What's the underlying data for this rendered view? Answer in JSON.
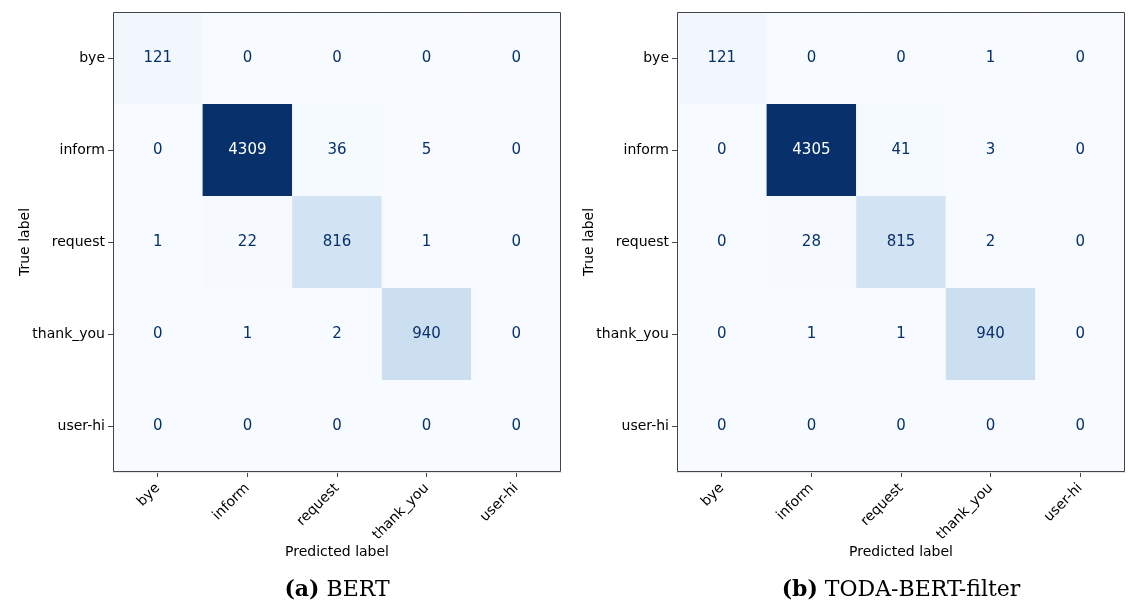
{
  "chart_data": [
    {
      "type": "heatmap",
      "title": "(a) BERT",
      "xlabel": "Predicted label",
      "ylabel": "True label",
      "categories": [
        "bye",
        "inform",
        "request",
        "thank_you",
        "user-hi"
      ],
      "y_categories": [
        "bye",
        "inform",
        "request",
        "thank_you",
        "user-hi"
      ],
      "cells": [
        [
          121,
          0,
          0,
          0,
          0
        ],
        [
          0,
          4309,
          36,
          5,
          0
        ],
        [
          1,
          22,
          816,
          1,
          0
        ],
        [
          0,
          1,
          2,
          940,
          0
        ],
        [
          0,
          0,
          0,
          0,
          0
        ]
      ],
      "data_labels": true
    },
    {
      "type": "heatmap",
      "title": "(b) TODA-BERT-filter",
      "xlabel": "Predicted label",
      "ylabel": "True label",
      "categories": [
        "bye",
        "inform",
        "request",
        "thank_you",
        "user-hi"
      ],
      "y_categories": [
        "bye",
        "inform",
        "request",
        "thank_you",
        "user-hi"
      ],
      "cells": [
        [
          121,
          0,
          0,
          1,
          0
        ],
        [
          0,
          4305,
          41,
          3,
          0
        ],
        [
          0,
          28,
          815,
          2,
          0
        ],
        [
          0,
          1,
          1,
          940,
          0
        ],
        [
          0,
          0,
          0,
          0,
          0
        ]
      ],
      "data_labels": true
    }
  ]
}
